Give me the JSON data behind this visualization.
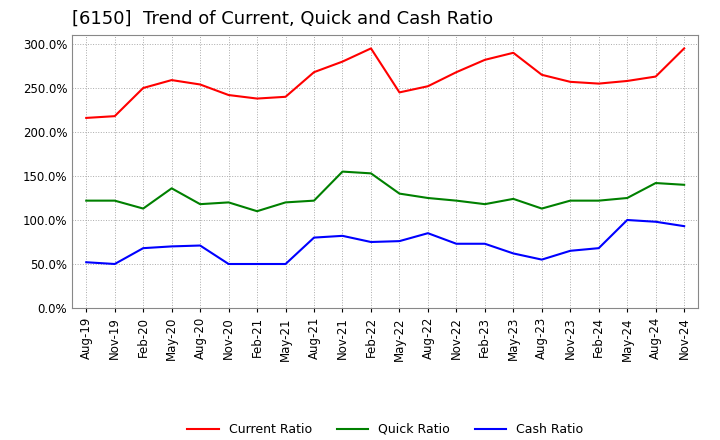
{
  "title": "[6150]  Trend of Current, Quick and Cash Ratio",
  "legend": [
    "Current Ratio",
    "Quick Ratio",
    "Cash Ratio"
  ],
  "legend_colors": [
    "red",
    "green",
    "blue"
  ],
  "x_labels": [
    "Aug-19",
    "Nov-19",
    "Feb-20",
    "May-20",
    "Aug-20",
    "Nov-20",
    "Feb-21",
    "May-21",
    "Aug-21",
    "Nov-21",
    "Feb-22",
    "May-22",
    "Aug-22",
    "Nov-22",
    "Feb-23",
    "May-23",
    "Aug-23",
    "Nov-23",
    "Feb-24",
    "May-24",
    "Aug-24",
    "Nov-24"
  ],
  "current_ratio": [
    216.0,
    218.0,
    250.0,
    259.0,
    254.0,
    242.0,
    238.0,
    240.0,
    268.0,
    280.0,
    295.0,
    245.0,
    252.0,
    268.0,
    282.0,
    290.0,
    265.0,
    257.0,
    255.0,
    258.0,
    263.0,
    295.0
  ],
  "quick_ratio": [
    122.0,
    122.0,
    113.0,
    136.0,
    118.0,
    120.0,
    110.0,
    120.0,
    122.0,
    155.0,
    153.0,
    130.0,
    125.0,
    122.0,
    118.0,
    124.0,
    113.0,
    122.0,
    122.0,
    125.0,
    142.0,
    140.0
  ],
  "cash_ratio": [
    52.0,
    50.0,
    68.0,
    70.0,
    71.0,
    50.0,
    50.0,
    50.0,
    80.0,
    82.0,
    75.0,
    76.0,
    85.0,
    73.0,
    73.0,
    62.0,
    55.0,
    65.0,
    68.0,
    100.0,
    98.0,
    93.0
  ],
  "background_color": "#ffffff",
  "grid_color": "#aaaaaa",
  "title_fontsize": 13,
  "tick_fontsize": 8.5,
  "legend_fontsize": 9
}
